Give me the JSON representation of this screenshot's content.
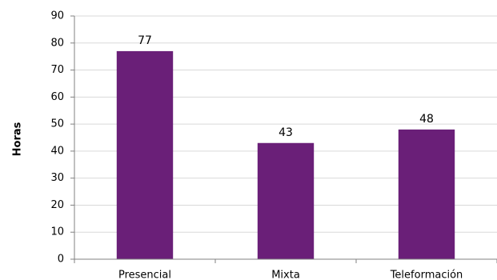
{
  "chart_data": {
    "type": "bar",
    "categories": [
      "Presencial",
      "Mixta",
      "Teleformación"
    ],
    "values": [
      77,
      43,
      48
    ],
    "data_labels": [
      "77",
      "43",
      "48"
    ],
    "title": "",
    "xlabel": "",
    "ylabel": "Horas",
    "ylim": [
      0,
      90
    ],
    "yticks": [
      "0",
      "10",
      "20",
      "30",
      "40",
      "50",
      "60",
      "70",
      "80",
      "90"
    ],
    "grid": true,
    "legend": "none",
    "colors": {
      "bar": "#6a1f78",
      "grid": "#d9d9d9",
      "axis": "#808080"
    }
  }
}
